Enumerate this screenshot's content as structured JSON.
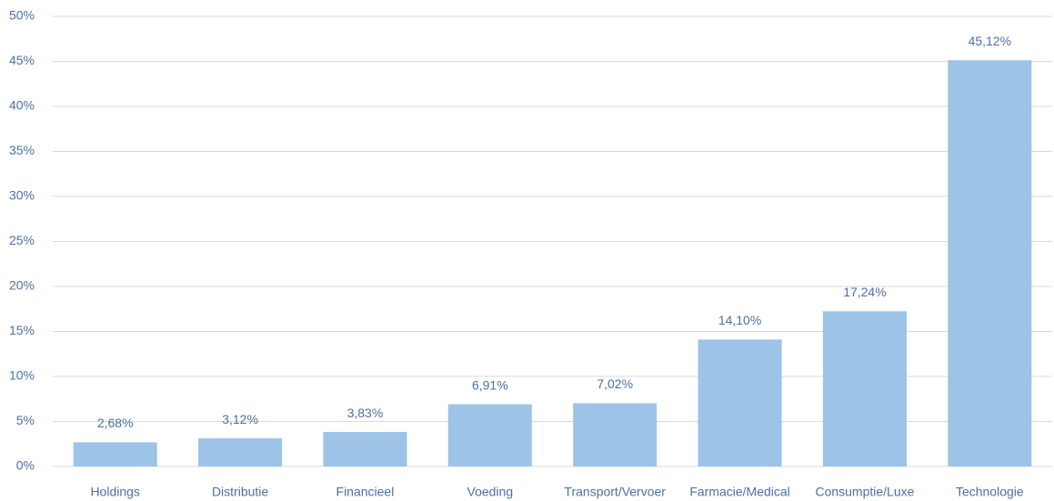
{
  "chart_data": {
    "type": "bar",
    "categories": [
      "Holdings",
      "Distributie",
      "Financieel",
      "Voeding",
      "Transport/Vervoer",
      "Farmacie/Medical",
      "Consumptie/Luxe",
      "Technologie"
    ],
    "values": [
      2.68,
      3.12,
      3.83,
      6.91,
      7.02,
      14.1,
      17.24,
      45.12
    ],
    "value_labels": [
      "2,68%",
      "3,12%",
      "3,83%",
      "6,91%",
      "7,02%",
      "14,10%",
      "17,24%",
      "45,12%"
    ],
    "color": "#9dc3e6",
    "ylim": [
      0,
      50
    ],
    "yticks": [
      {
        "value": 0,
        "label": "0%"
      },
      {
        "value": 5,
        "label": "5%"
      },
      {
        "value": 10,
        "label": "10%"
      },
      {
        "value": 15,
        "label": "15%"
      },
      {
        "value": 20,
        "label": "20%"
      },
      {
        "value": 25,
        "label": "25%"
      },
      {
        "value": 30,
        "label": "30%"
      },
      {
        "value": 35,
        "label": "35%"
      },
      {
        "value": 40,
        "label": "40%"
      },
      {
        "value": 45,
        "label": "45%"
      },
      {
        "value": 50,
        "label": "50%"
      }
    ],
    "grid": true
  }
}
